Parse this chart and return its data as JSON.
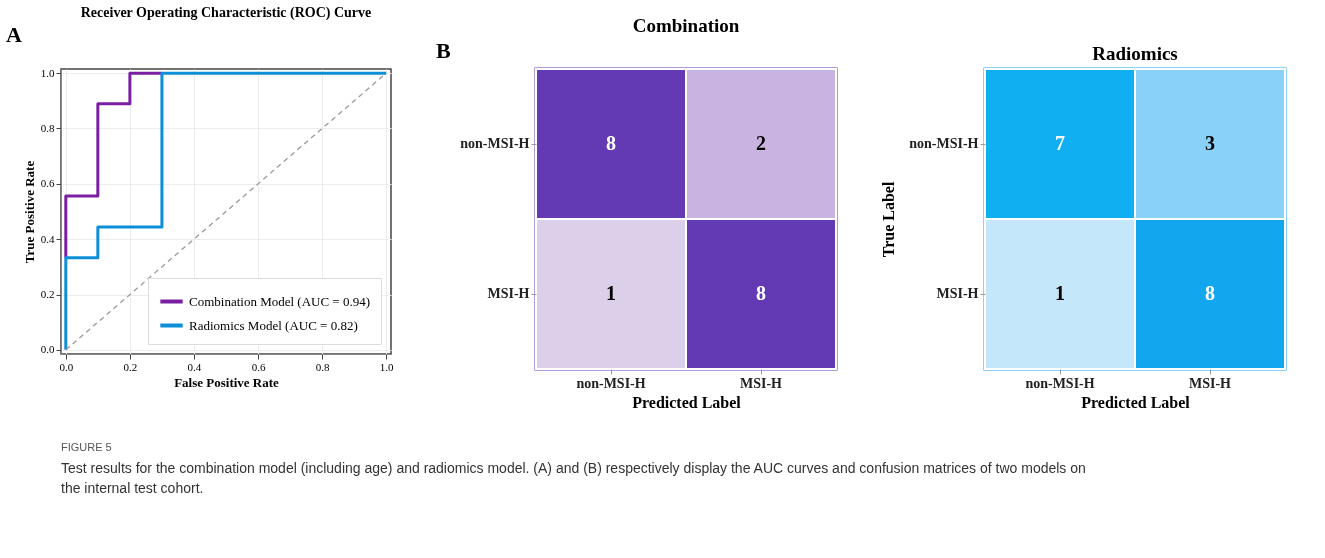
{
  "chart_data": [
    {
      "type": "line",
      "title": "Receiver Operating Characteristic (ROC) Curve",
      "xlabel": "False Positive Rate",
      "ylabel": "True Positive Rate",
      "series": [
        {
          "name": "Combination Model (AUC = 0.94)",
          "color": "#7b1fa2",
          "x": [
            0,
            0,
            0.1,
            0.1,
            0.2,
            0.2,
            0.3
          ],
          "values": [
            0.333,
            0.556,
            0.556,
            0.889,
            0.889,
            1.0,
            1.0
          ]
        },
        {
          "name": "Radiomics Model (AUC = 0.82)",
          "color": "#0d8fd8",
          "x": [
            0,
            0,
            0.1,
            0.1,
            0.3,
            0.3,
            1.0
          ],
          "values": [
            0,
            0.333,
            0.333,
            0.444,
            0.444,
            1.0,
            1.0
          ]
        },
        {
          "color": "#999999",
          "line_style": "dashed",
          "x": [
            0,
            1
          ],
          "values": [
            0,
            1
          ]
        }
      ],
      "xlim": [
        -0.015,
        1.015
      ],
      "ylim": [
        -0.015,
        1.015
      ],
      "xticks": [
        {
          "value": 0,
          "label": "0.0"
        },
        0.2,
        0.4,
        0.6,
        0.8,
        {
          "value": 1,
          "label": "1.0"
        }
      ],
      "yticks": [
        {
          "value": 0,
          "label": "0.0"
        },
        0.2,
        0.4,
        0.6,
        0.8,
        {
          "value": 1,
          "label": "1.0"
        }
      ],
      "grid": true,
      "legend": "bottom right",
      "annotations": [
        "A",
        "FIGURE 5",
        "Test results for the combination model (including age) and radiomics model. (A) and (B) respectively display the AUC curves and confusion matrices of two models on the internal test cohort."
      ]
    },
    {
      "type": "heatmap",
      "title": "Combination",
      "xlabel": "Predicted Label",
      "categories": [
        "non-MSI-H",
        "MSI-H"
      ],
      "y_categories": [
        "non-MSI-H",
        "MSI-H"
      ],
      "cells": [
        [
          8,
          2
        ],
        [
          1,
          8
        ]
      ],
      "colors": [
        "#6439b4",
        "#c9b4e1",
        "#dccfe9",
        "#6439b4"
      ],
      "data_labels": true,
      "annotations": [
        "B"
      ]
    },
    {
      "type": "heatmap",
      "title": "Radiomics",
      "xlabel": "Predicted Label",
      "ylabel": "True Label",
      "categories": [
        "non-MSI-H",
        "MSI-H"
      ],
      "y_categories": [
        "non-MSI-H",
        "MSI-H"
      ],
      "cells": [
        [
          7,
          3
        ],
        [
          1,
          8
        ]
      ],
      "colors": [
        "#10aff2",
        "#89d1f6",
        "#c4e7f9",
        "#12a6ef"
      ],
      "data_labels": true
    }
  ]
}
